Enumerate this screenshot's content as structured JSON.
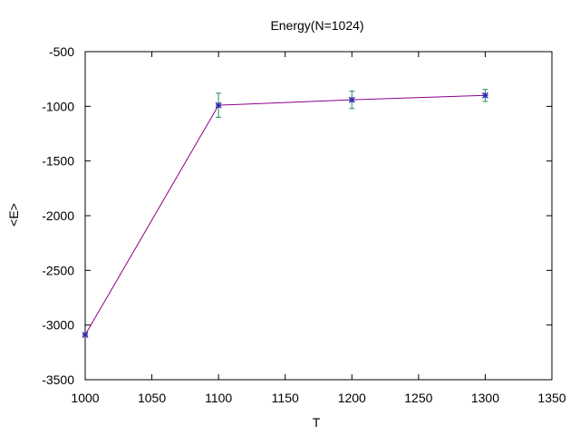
{
  "chart_data": {
    "type": "line",
    "title": "Energy(N=1024)",
    "xlabel": "T",
    "ylabel": "<E>",
    "xlim": [
      1000,
      1350
    ],
    "ylim": [
      -3500,
      -500
    ],
    "xticks": [
      1000,
      1050,
      1100,
      1150,
      1200,
      1250,
      1300,
      1350
    ],
    "yticks": [
      -500,
      -1000,
      -1500,
      -2000,
      -2500,
      -3000,
      -3500
    ],
    "grid": false,
    "legend": "none",
    "series": [
      {
        "x": [
          1000,
          1100,
          1200,
          1300
        ],
        "y": [
          -3090,
          -990,
          -940,
          -900
        ],
        "yerr": [
          0,
          110,
          80,
          55
        ],
        "line_color": "#8b008b",
        "marker_color": "#3333aa",
        "errorbar_color": "#2e8b57"
      }
    ]
  }
}
